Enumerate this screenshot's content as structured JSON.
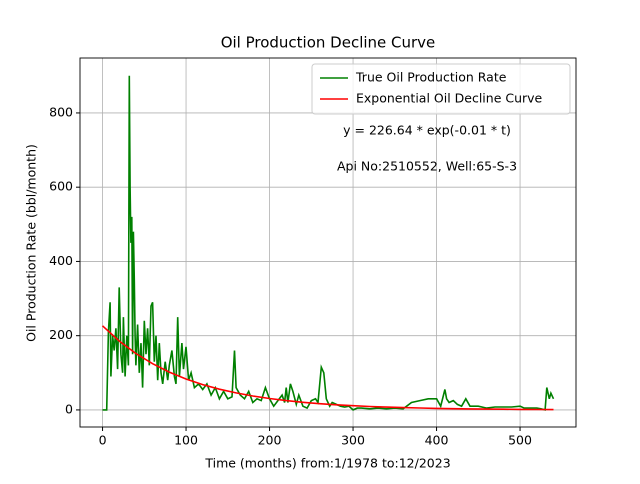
{
  "chart_data": {
    "type": "line",
    "title": "Oil Production Decline Curve",
    "xlabel": "Time (months) from:1/1978 to:12/2023",
    "ylabel": "Oil Production Rate (bbl/month)",
    "annotations": [
      "y = 226.64 * exp(-0.01 * t)",
      "Api No:2510552, Well:65-S-3"
    ],
    "xlim": [
      -27,
      567
    ],
    "ylim": [
      -46,
      948
    ],
    "xticks": [
      0,
      100,
      200,
      300,
      400,
      500
    ],
    "yticks": [
      0,
      200,
      400,
      600,
      800
    ],
    "grid": true,
    "legend": "upper right",
    "series": [
      {
        "name": "True Oil Production Rate",
        "color": "#008000",
        "x": [
          0,
          5,
          7,
          9,
          10,
          12,
          14,
          16,
          18,
          20,
          22,
          24,
          25,
          27,
          29,
          31,
          32,
          33,
          34,
          35,
          36,
          37,
          38,
          39,
          40,
          42,
          44,
          46,
          48,
          50,
          52,
          54,
          56,
          58,
          60,
          62,
          64,
          66,
          68,
          70,
          72,
          75,
          78,
          80,
          83,
          86,
          88,
          90,
          92,
          95,
          97,
          100,
          103,
          106,
          110,
          115,
          120,
          125,
          130,
          135,
          140,
          145,
          150,
          155,
          158,
          160,
          165,
          170,
          175,
          180,
          185,
          190,
          195,
          200,
          205,
          210,
          215,
          218,
          220,
          222,
          225,
          228,
          232,
          235,
          240,
          245,
          250,
          255,
          258,
          262,
          265,
          268,
          272,
          275,
          280,
          285,
          290,
          295,
          300,
          305,
          310,
          320,
          330,
          340,
          350,
          360,
          370,
          380,
          390,
          400,
          405,
          410,
          412,
          415,
          420,
          425,
          430,
          435,
          440,
          450,
          460,
          470,
          480,
          490,
          500,
          505,
          510,
          520,
          525,
          530,
          532,
          535,
          537,
          540
        ],
        "values": [
          0,
          0,
          210,
          290,
          90,
          200,
          160,
          220,
          110,
          330,
          150,
          100,
          250,
          90,
          200,
          120,
          900,
          600,
          450,
          520,
          150,
          480,
          350,
          200,
          120,
          230,
          100,
          180,
          60,
          240,
          150,
          220,
          120,
          280,
          290,
          130,
          200,
          80,
          180,
          100,
          70,
          130,
          80,
          120,
          160,
          90,
          70,
          250,
          90,
          180,
          110,
          170,
          80,
          100,
          60,
          70,
          55,
          70,
          40,
          60,
          30,
          50,
          30,
          35,
          160,
          60,
          40,
          30,
          50,
          20,
          30,
          25,
          60,
          30,
          10,
          25,
          40,
          20,
          60,
          20,
          70,
          50,
          15,
          40,
          10,
          5,
          25,
          30,
          20,
          115,
          100,
          30,
          10,
          20,
          15,
          10,
          8,
          10,
          0,
          5,
          5,
          3,
          5,
          3,
          5,
          3,
          20,
          25,
          30,
          30,
          10,
          55,
          30,
          20,
          25,
          15,
          10,
          30,
          10,
          10,
          5,
          8,
          8,
          8,
          10,
          5,
          5,
          5,
          3,
          0,
          60,
          30,
          45,
          30
        ]
      },
      {
        "name": "Exponential Oil Decline Curve",
        "color": "#ff0000",
        "x": [
          0,
          20,
          40,
          60,
          80,
          100,
          120,
          140,
          160,
          180,
          200,
          220,
          240,
          260,
          280,
          300,
          320,
          340,
          360,
          380,
          400,
          420,
          440,
          460,
          480,
          500,
          520,
          540
        ],
        "values": [
          226.6,
          185.6,
          151.9,
          124.4,
          101.8,
          83.4,
          68.3,
          55.9,
          45.8,
          37.5,
          30.7,
          25.1,
          20.6,
          16.8,
          13.8,
          11.3,
          9.2,
          7.6,
          6.2,
          5.1,
          4.2,
          3.4,
          2.8,
          2.3,
          1.9,
          1.5,
          1.2,
          1.0
        ]
      }
    ]
  }
}
